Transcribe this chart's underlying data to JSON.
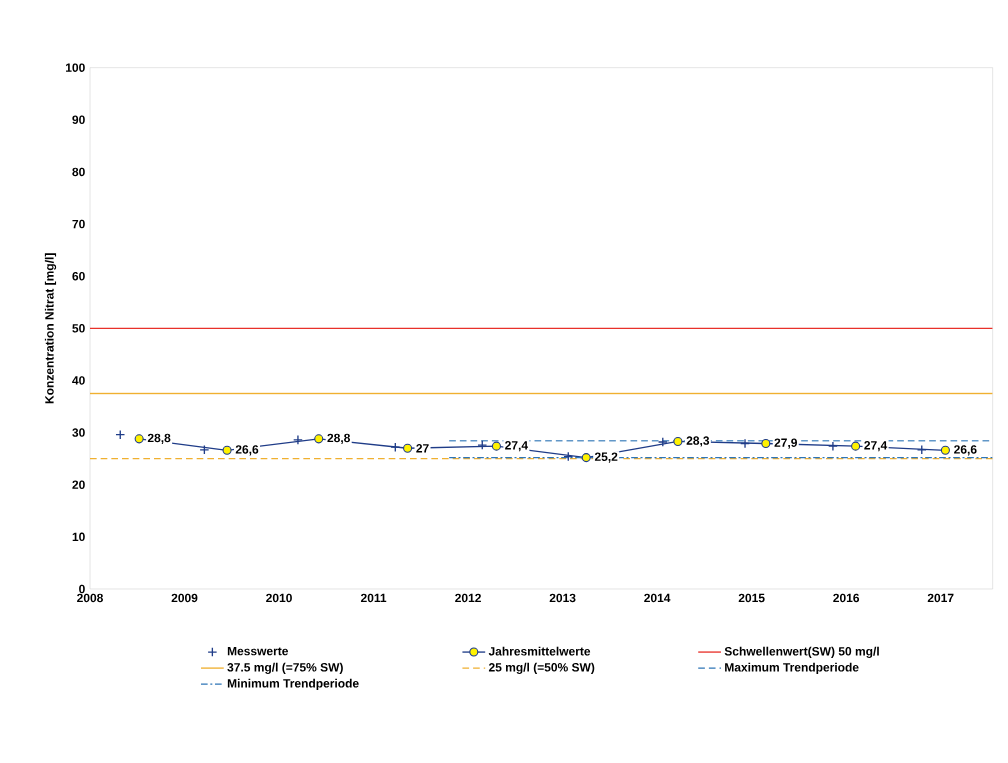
{
  "chart_data": {
    "type": "line",
    "ylabel": "Konzentration Nitrat [mg/l]",
    "xlim": [
      2008,
      2017.55
    ],
    "xticks": [
      2008,
      2009,
      2010,
      2011,
      2012,
      2013,
      2014,
      2015,
      2016,
      2017
    ],
    "ylim": [
      0,
      100
    ],
    "yticks": [
      0,
      10,
      20,
      30,
      40,
      50,
      60,
      70,
      80,
      90,
      100
    ],
    "legend": "bottom",
    "grid": false,
    "series": [
      {
        "name": "Messwerte",
        "type": "scatter",
        "marker": "cross",
        "color": "#1f3c88",
        "x": [
          2008.32,
          2009.21,
          2010.2,
          2011.23,
          2012.15,
          2013.06,
          2014.06,
          2014.93,
          2015.86,
          2016.8
        ],
        "values": [
          29.6,
          26.7,
          28.6,
          27.2,
          27.6,
          25.4,
          28.2,
          27.9,
          27.4,
          26.7
        ]
      },
      {
        "name": "Jahresmittelwerte",
        "marker": "circle",
        "color": "#1f3c88",
        "x": [
          2008.52,
          2009.45,
          2010.42,
          2011.36,
          2012.3,
          2013.25,
          2014.22,
          2015.15,
          2016.1,
          2017.05
        ],
        "values": [
          28.8,
          26.6,
          28.8,
          27,
          27.4,
          25.2,
          28.3,
          27.9,
          27.4,
          26.6
        ],
        "value_labels": [
          "28,8",
          "26,6",
          "28,8",
          "27",
          "27,4",
          "25,2",
          "28,3",
          "27,9",
          "27,4",
          "26,6"
        ]
      },
      {
        "name": "Maximum Trendperiode",
        "line_style": "dashed",
        "color": "#2e75b6",
        "x": [
          2011.8,
          2017.55
        ],
        "values": [
          28.4,
          28.4
        ]
      },
      {
        "name": "Minimum Trendperiode",
        "line_style": "dashdot",
        "color": "#2e75b6",
        "x": [
          2011.8,
          2017.55
        ],
        "values": [
          25.2,
          25.2
        ]
      }
    ],
    "ref_lines": [
      {
        "axis": "y",
        "value": 50,
        "label": "Schwellenwert(SW) 50 mg/l",
        "color": "#e8312a",
        "line_style": "solid"
      },
      {
        "axis": "y",
        "value": 37.5,
        "label": "37.5 mg/l (=75% SW)",
        "color": "#f0b030",
        "line_style": "solid"
      },
      {
        "axis": "y",
        "value": 25,
        "label": "25 mg/l (=50% SW)",
        "color": "#f0b030",
        "line_style": "dashed"
      }
    ]
  }
}
